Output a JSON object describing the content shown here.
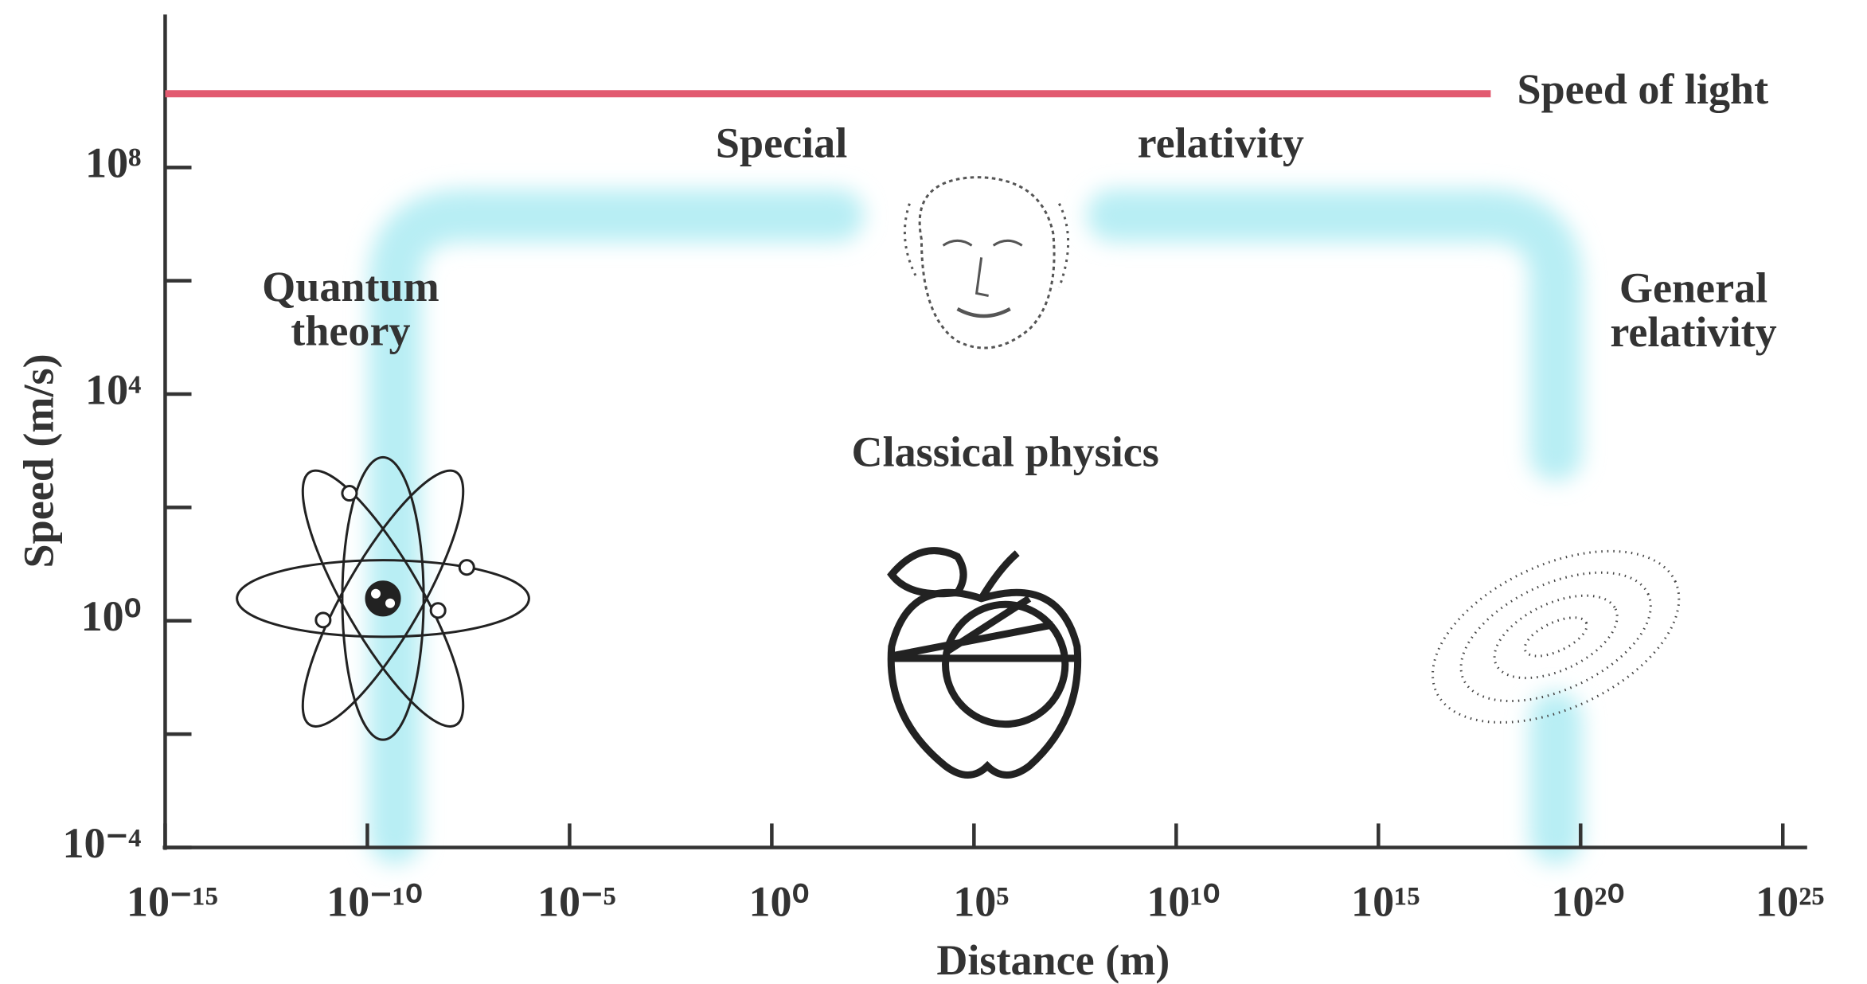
{
  "chart_data": {
    "type": "regime-diagram",
    "x_label": "Distance (m)",
    "y_label": "Speed (m/s)",
    "x_log": true,
    "y_log": true,
    "xlim": [
      1e-15,
      4e+25
    ],
    "ylim": [
      0.0001,
      50000000000.0
    ],
    "xticks": [
      {
        "value": 1e-15,
        "label": "10⁻¹⁵"
      },
      {
        "value": 1e-10,
        "label": "10⁻¹⁰"
      },
      {
        "value": 1e-05,
        "label": "10⁻⁵"
      },
      {
        "value": 1,
        "label": "10⁰"
      },
      {
        "value": 100000.0,
        "label": "10⁵"
      },
      {
        "value": 10000000000.0,
        "label": "10¹⁰"
      },
      {
        "value": 1000000000000000.0,
        "label": "10¹⁵"
      },
      {
        "value": 1e+20,
        "label": "10²⁰"
      },
      {
        "value": 1e+25,
        "label": "10²⁵"
      }
    ],
    "yticks": [
      {
        "value": 0.0001,
        "label": "10⁻⁴"
      },
      {
        "value": 1,
        "label": "10⁰"
      },
      {
        "value": 10000.0,
        "label": "10⁴"
      },
      {
        "value": 100000000.0,
        "label": "10⁸"
      }
    ],
    "y_minor_ticks": [
      0.01,
      100,
      1000000
    ],
    "reference_line": {
      "name": "Speed of light",
      "color": "#e25a70",
      "value": 2000000000,
      "x": [
        1e-15,
        6e+17
      ]
    },
    "regions": [
      {
        "lines": [
          "Special"
        ]
      },
      {
        "lines": [
          "relativity"
        ]
      },
      {
        "lines": [
          "Quantum",
          "theory"
        ]
      },
      {
        "lines": [
          "Classical physics"
        ]
      },
      {
        "lines": [
          "General",
          "relativity"
        ]
      }
    ]
  }
}
